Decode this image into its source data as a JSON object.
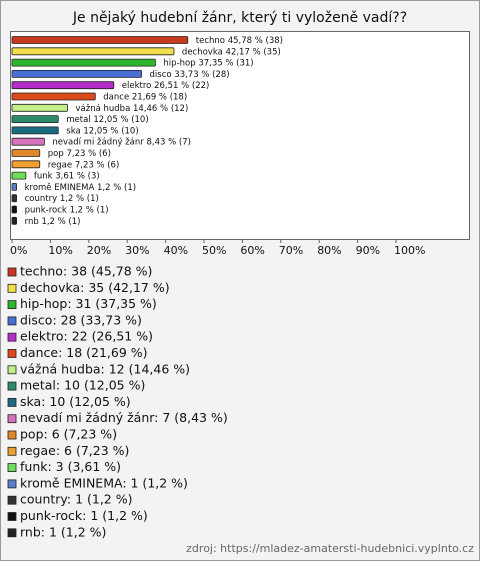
{
  "chart_data": {
    "type": "bar",
    "horizontal": true,
    "title": "Je nějaký hudební žánr, který ti vyloženě vadí??",
    "categories": [
      "techno",
      "dechovka",
      "hip-hop",
      "disco",
      "elektro",
      "dance",
      "vážná hudba",
      "metal",
      "ska",
      "nevadí mi žádný žánr",
      "pop",
      "regae",
      "funk",
      "kromě EMINEMA",
      "country",
      "punk-rock",
      "rnb"
    ],
    "values": [
      45.78,
      42.17,
      37.35,
      33.73,
      26.51,
      21.69,
      14.46,
      12.05,
      12.05,
      8.43,
      7.23,
      7.23,
      3.61,
      1.2,
      1.2,
      1.2,
      1.2
    ],
    "value_labels": [
      "45,78 % (38)",
      "42,17 % (35)",
      "37,35 % (31)",
      "33,73 % (28)",
      "26,51 % (22)",
      "21,69 % (18)",
      "14,46 % (12)",
      "12,05 % (10)",
      "12,05 % (10)",
      "8,43 % (7)",
      "7,23 % (6)",
      "7,23 % (6)",
      "3,61 % (3)",
      "1,2 % (1)",
      "1,2 % (1)",
      "1,2 % (1)",
      "1,2 % (1)"
    ],
    "legend_labels": [
      "techno: 38 (45,78 %)",
      "dechovka: 35 (42,17 %)",
      "hip-hop: 31 (37,35 %)",
      "disco: 28 (33,73 %)",
      "elektro: 22 (26,51 %)",
      "dance: 18 (21,69 %)",
      "vážná hudba: 12 (14,46 %)",
      "metal: 10 (12,05 %)",
      "ska: 10 (12,05 %)",
      "nevadí mi žádný žánr: 7 (8,43 %)",
      "pop: 6 (7,23 %)",
      "regae: 6 (7,23 %)",
      "funk: 3 (3,61 %)",
      "kromě EMINEMA: 1 (1,2 %)",
      "country: 1 (1,2 %)",
      "punk-rock: 1 (1,2 %)",
      "rnb: 1 (1,2 %)"
    ],
    "colors": [
      "#c8381e",
      "#f2de4a",
      "#2db52d",
      "#4a6fd4",
      "#b22ec6",
      "#dc4a1c",
      "#c4ee8a",
      "#2a8a6a",
      "#1a6b80",
      "#d673be",
      "#e0882a",
      "#f0a030",
      "#6ede5a",
      "#5a7fc8",
      "#333333",
      "#111111",
      "#222222"
    ],
    "xlim": [
      0,
      100
    ],
    "xticks": [
      {
        "value": 0,
        "label": "0%"
      },
      {
        "value": 10,
        "label": "10%"
      },
      {
        "value": 20,
        "label": "20%"
      },
      {
        "value": 30,
        "label": "30%"
      },
      {
        "value": 40,
        "label": "40%"
      },
      {
        "value": 50,
        "label": "50%"
      },
      {
        "value": 60,
        "label": "60%"
      },
      {
        "value": 70,
        "label": "70%"
      },
      {
        "value": 80,
        "label": "80%"
      },
      {
        "value": 90,
        "label": "90%"
      },
      {
        "value": 100,
        "label": "100%"
      }
    ],
    "source": "zdroj: https://mladez-amatersti-hudebnici.vyplnto.cz"
  }
}
